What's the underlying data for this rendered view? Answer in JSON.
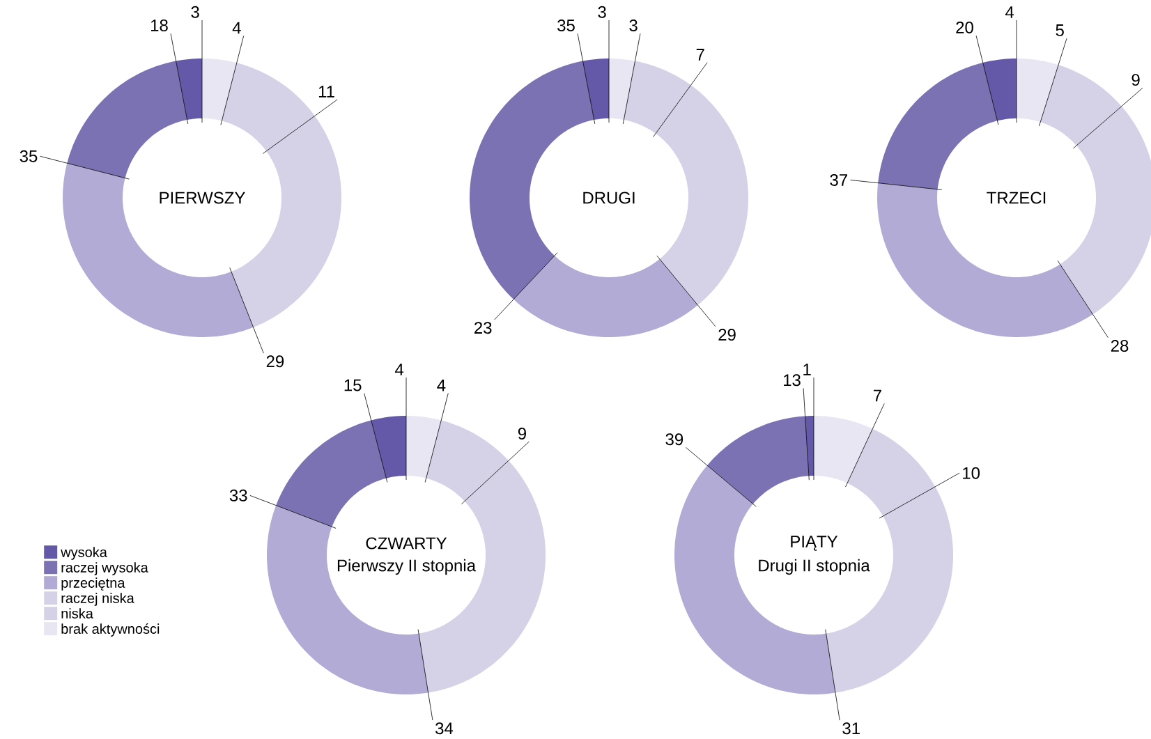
{
  "chart_data": [
    {
      "type": "donut",
      "title": "PIERWSZY",
      "categories": [
        null,
        null,
        null,
        null,
        null,
        null
      ],
      "values": [
        4,
        11,
        29,
        35,
        18,
        3
      ],
      "colors": [
        "#e8e6f3",
        "#d5d2e8",
        "#d5d2e8",
        "#b1abd5",
        "#7b72b4",
        "#6459a8"
      ],
      "data_labels": true
    },
    {
      "type": "donut",
      "title": "DRUGI",
      "categories": [
        null,
        null,
        null,
        null,
        null,
        null
      ],
      "values": [
        3,
        7,
        29,
        23,
        35,
        3
      ],
      "colors": [
        "#e8e6f3",
        "#d5d2e8",
        "#d5d2e8",
        "#b1abd5",
        "#7b72b4",
        "#6459a8"
      ],
      "data_labels": true
    },
    {
      "type": "donut",
      "title": "TRZECI",
      "categories": [
        null,
        null,
        null,
        null,
        null,
        null
      ],
      "values": [
        5,
        9,
        28,
        37,
        20,
        4
      ],
      "colors": [
        "#e8e6f3",
        "#d5d2e8",
        "#d5d2e8",
        "#b1abd5",
        "#7b72b4",
        "#6459a8"
      ],
      "data_labels": true
    },
    {
      "type": "donut",
      "title": "CZWARTY",
      "subtitle": "Pierwszy II stopnia",
      "categories": [
        "brak aktywności",
        "niska",
        "raczej niska",
        "przeciętna",
        "raczej wysoka",
        "wysoka"
      ],
      "values": [
        4,
        9,
        34,
        33,
        15,
        4
      ],
      "colors": [
        "#e8e6f3",
        "#d5d2e8",
        "#d5d2e8",
        "#b1abd5",
        "#7b72b4",
        "#6459a8"
      ],
      "data_labels": true,
      "legend": "left"
    },
    {
      "type": "donut",
      "title": "PIĄTY",
      "subtitle": "Drugi II stopnia",
      "categories": [
        null,
        null,
        null,
        null,
        null,
        null
      ],
      "values": [
        7,
        10,
        31,
        39,
        13,
        1
      ],
      "colors": [
        "#e8e6f3",
        "#d5d2e8",
        "#d5d2e8",
        "#b1abd5",
        "#7b72b4",
        "#6459a8"
      ],
      "data_labels": true
    }
  ]
}
